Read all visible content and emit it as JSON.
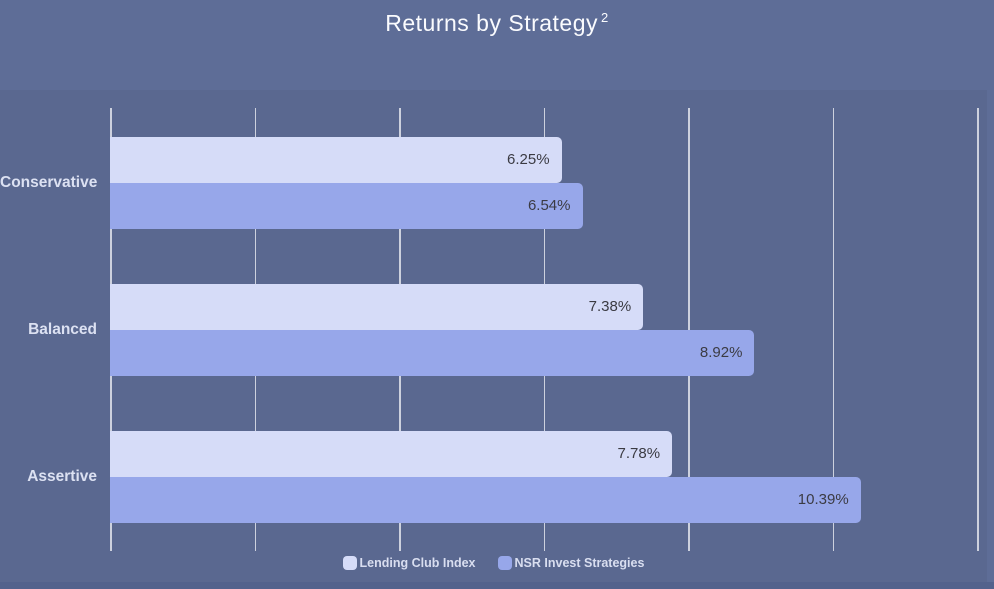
{
  "header": {
    "title": "Returns by Strategy",
    "title_superscript": "2"
  },
  "colors": {
    "header_bg": "#5e6d97",
    "plot_bg": "#5a6890",
    "footer_bg": "#53628c",
    "grid_color": "#e2e4ec",
    "title_text": "#fafbfe",
    "category_text": "#dce1f2",
    "value_text": "#3b3b43",
    "legend_text": "#d9def0",
    "series_light": "#d6dcf8",
    "series_dark": "#97a7ea"
  },
  "chart_data": {
    "type": "bar",
    "orientation": "horizontal",
    "title": "Returns by Strategy ²",
    "categories": [
      "Conservative",
      "Balanced",
      "Assertive"
    ],
    "series": [
      {
        "name": "Lending Club Index",
        "color": "#d6dcf8",
        "values": [
          6.25,
          7.38,
          7.78
        ],
        "labels": [
          "6.25%",
          "7.38%",
          "7.78%"
        ]
      },
      {
        "name": "NSR Invest Strategies",
        "color": "#97a7ea",
        "values": [
          6.54,
          8.92,
          10.39
        ],
        "labels": [
          "6.54%",
          "8.92%",
          "10.39%"
        ]
      }
    ],
    "xlim": [
      0,
      12
    ],
    "grid_step": 2,
    "grid": "vertical",
    "legend_position": "bottom-center",
    "value_labels": "inside-end"
  }
}
